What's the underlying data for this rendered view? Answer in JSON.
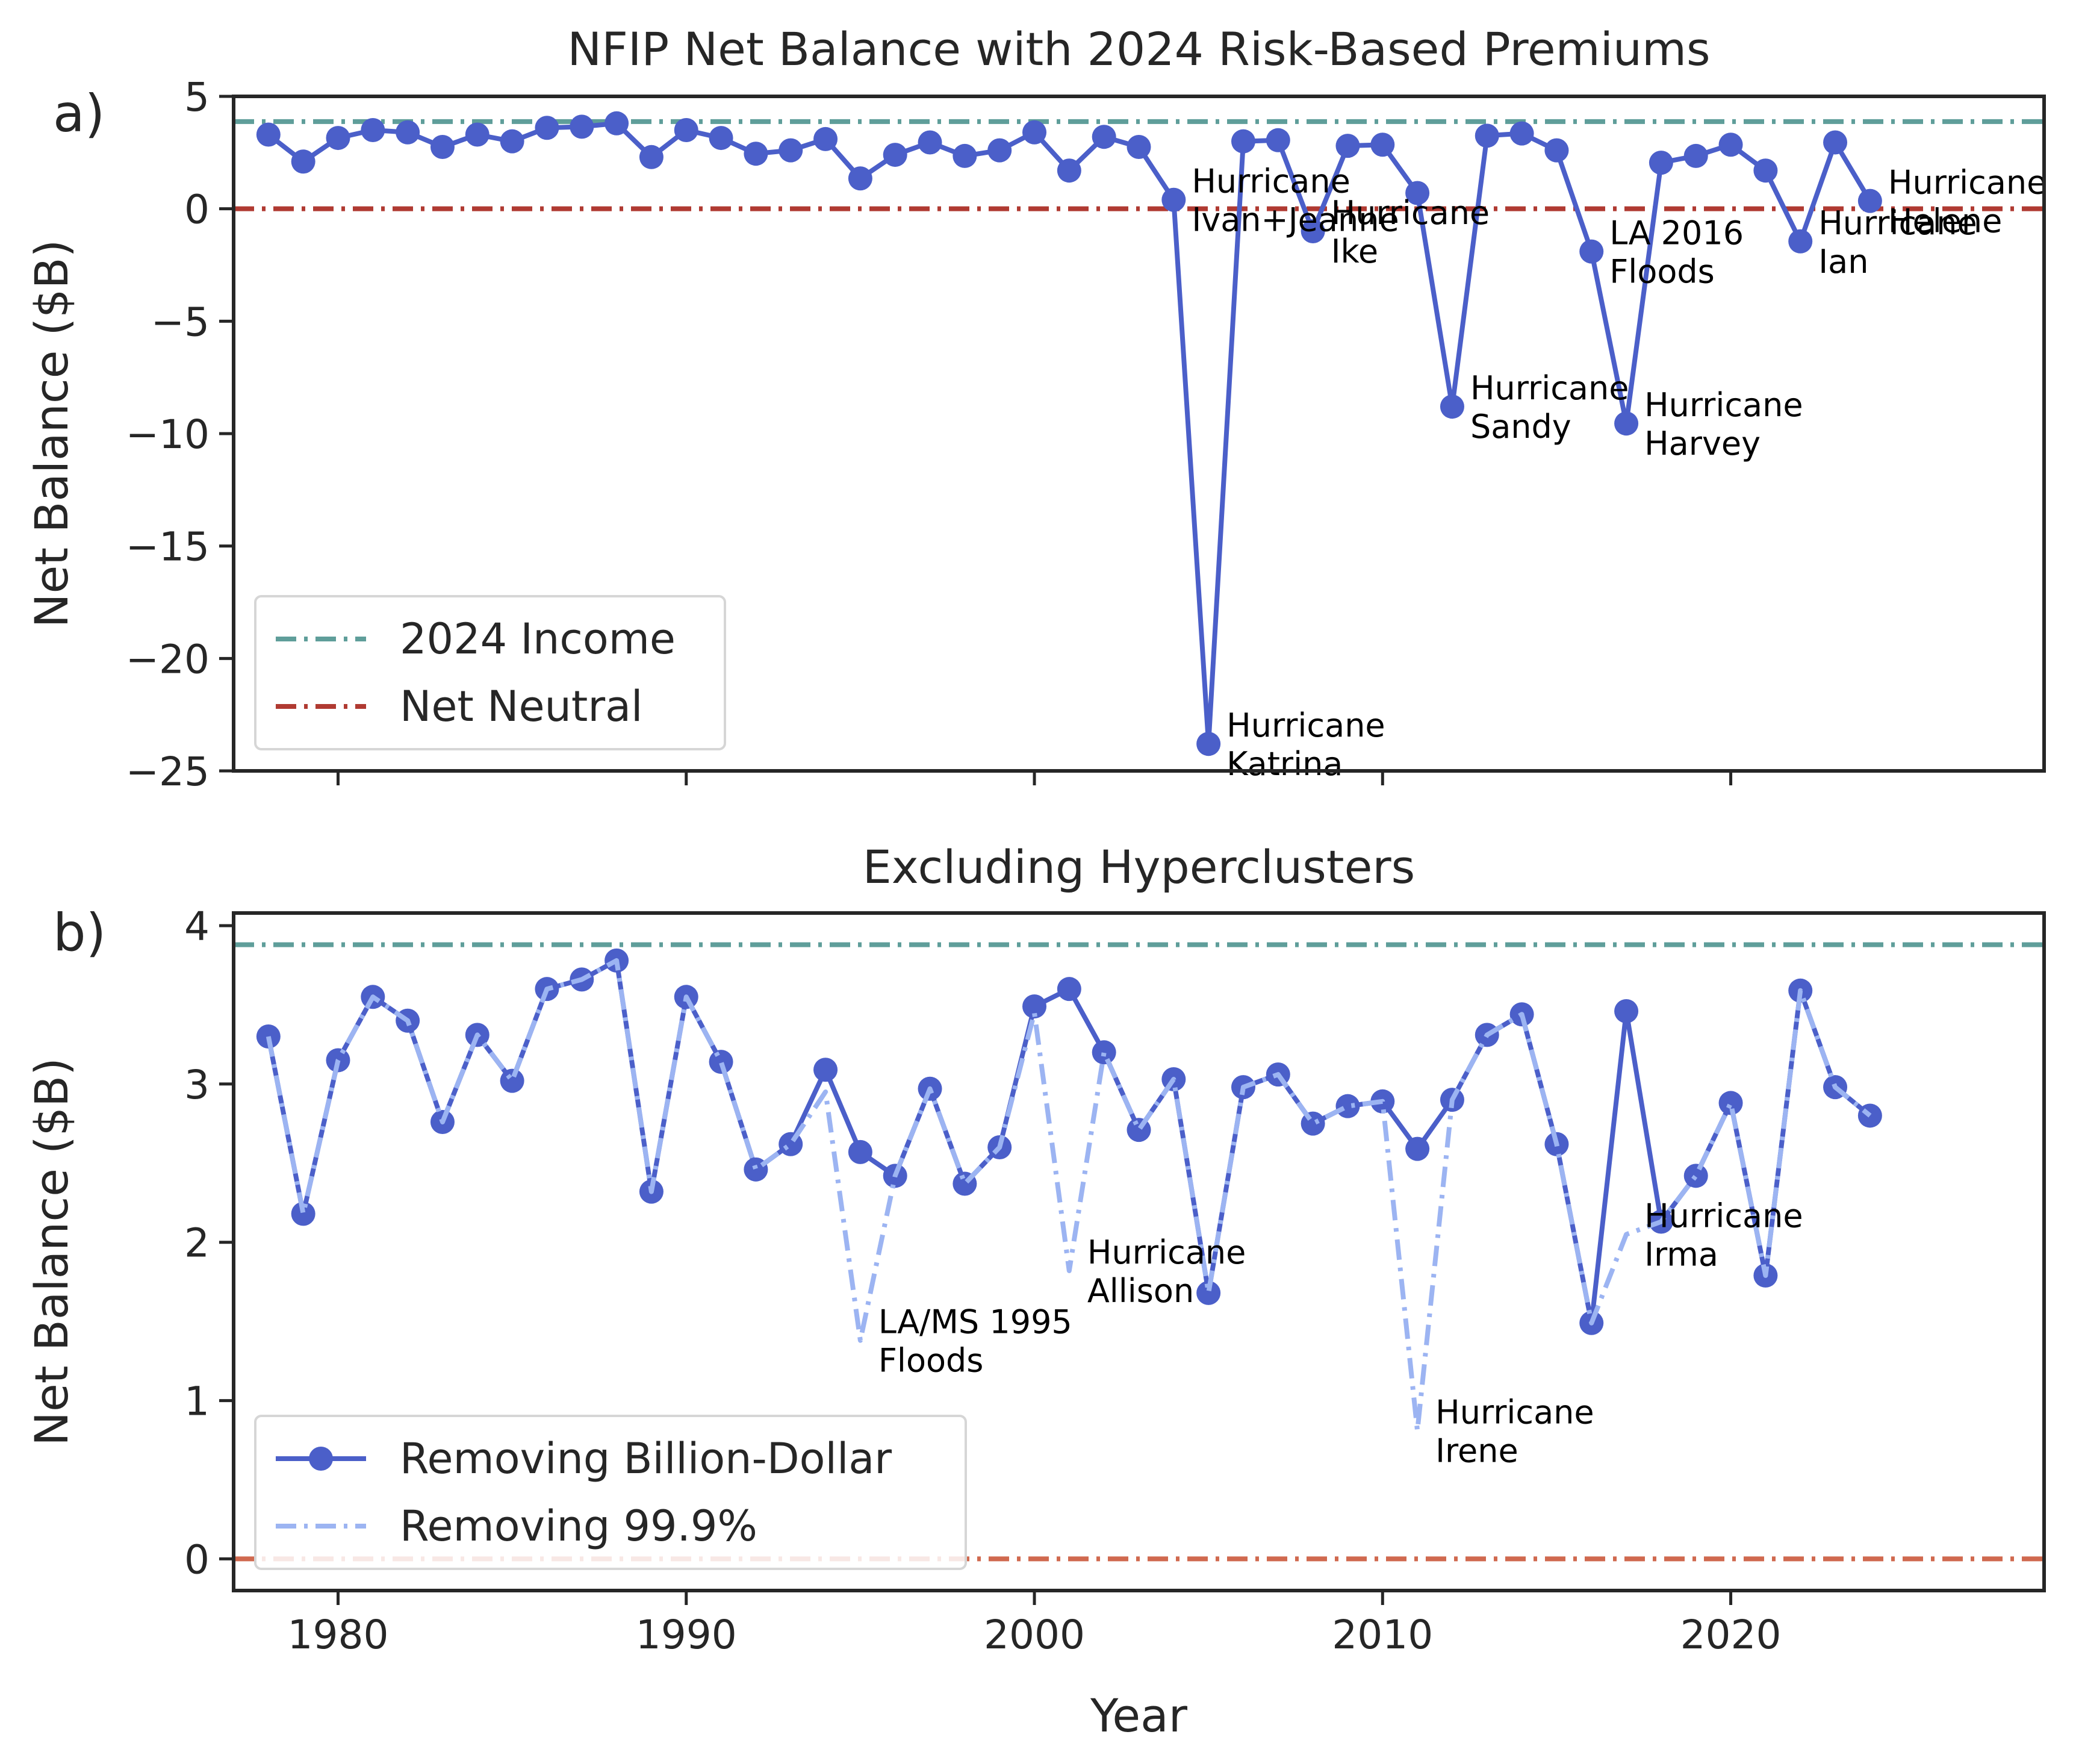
{
  "chart_data": [
    {
      "panel_label": "a)",
      "type": "line",
      "title": "NFIP Net Balance with 2024 Risk-Based Premiums",
      "xlabel": "",
      "ylabel": "Net Balance ($B)",
      "xlim": [
        1977,
        2029
      ],
      "ylim": [
        -25,
        5
      ],
      "xticks": [
        1980,
        1990,
        2000,
        2010,
        2020
      ],
      "yticks": [
        5,
        0,
        -5,
        -10,
        -15,
        -20,
        -25
      ],
      "ytick_labels": [
        "5",
        "0",
        "−5",
        "−10",
        "−15",
        "−20",
        "−25"
      ],
      "xtick_labels_visible": false,
      "grid": false,
      "legend_position": "lower-left",
      "reference_lines": [
        {
          "name": "2024 Income",
          "y": 3.88,
          "color": "#5f9e9a",
          "style": "dashdot"
        },
        {
          "name": "Net Neutral",
          "y": 0,
          "color": "#b03a32",
          "style": "dashdot"
        }
      ],
      "series": [
        {
          "color": "#4b5fc9",
          "x": [
            1978,
            1979,
            1980,
            1981,
            1982,
            1983,
            1984,
            1985,
            1986,
            1987,
            1988,
            1989,
            1990,
            1991,
            1992,
            1993,
            1994,
            1995,
            1996,
            1997,
            1998,
            1999,
            2000,
            2001,
            2002,
            2003,
            2004,
            2005,
            2006,
            2007,
            2008,
            2009,
            2010,
            2011,
            2012,
            2013,
            2014,
            2015,
            2016,
            2017,
            2018,
            2019,
            2020,
            2021,
            2022,
            2023,
            2024
          ],
          "values": [
            3.3,
            2.1,
            3.15,
            3.5,
            3.4,
            2.75,
            3.3,
            3.0,
            3.6,
            3.65,
            3.8,
            2.3,
            3.5,
            3.15,
            2.45,
            2.6,
            3.1,
            1.35,
            2.4,
            2.95,
            2.35,
            2.6,
            3.4,
            1.7,
            3.2,
            2.75,
            0.4,
            -23.8,
            3.0,
            3.05,
            -1.0,
            2.8,
            2.85,
            0.7,
            -8.8,
            3.25,
            3.35,
            2.6,
            -1.9,
            -9.55,
            2.05,
            2.35,
            2.85,
            1.7,
            -1.45,
            2.95,
            0.35
          ]
        }
      ],
      "annotations": [
        {
          "x": 2004,
          "y": 0.4,
          "lines": [
            "Hurricane",
            "Ivan+Jeanne"
          ]
        },
        {
          "x": 2005,
          "y": -23.8,
          "lines": [
            "Hurricane",
            "Katrina"
          ]
        },
        {
          "x": 2008,
          "y": -1.0,
          "lines": [
            "Hurricane",
            "Ike"
          ]
        },
        {
          "x": 2012,
          "y": -8.8,
          "lines": [
            "Hurricane",
            "Sandy"
          ]
        },
        {
          "x": 2016,
          "y": -1.9,
          "lines": [
            "LA 2016",
            "Floods"
          ]
        },
        {
          "x": 2017,
          "y": -9.55,
          "lines": [
            "Hurricane",
            "Harvey"
          ]
        },
        {
          "x": 2022,
          "y": -1.45,
          "lines": [
            "Hurricane",
            "Ian"
          ]
        },
        {
          "x": 2024,
          "y": 0.35,
          "lines": [
            "Hurricane",
            "Helene"
          ]
        }
      ]
    },
    {
      "panel_label": "b)",
      "type": "line",
      "title": "Excluding Hyperclusters",
      "xlabel": "Year",
      "ylabel": "Net Balance ($B)",
      "xlim": [
        1977,
        2029
      ],
      "ylim": [
        -0.2,
        4.08
      ],
      "xticks": [
        1980,
        1990,
        2000,
        2010,
        2020
      ],
      "yticks": [
        0,
        1,
        2,
        3,
        4
      ],
      "ytick_labels": [
        "0",
        "1",
        "2",
        "3",
        "4"
      ],
      "xtick_labels_visible": true,
      "grid": false,
      "legend_position": "lower-left",
      "reference_lines": [
        {
          "y": 3.88,
          "color": "#5f9e9a",
          "style": "dashdot"
        },
        {
          "y": 0,
          "color": "#d0694f",
          "style": "dashdot"
        }
      ],
      "series": [
        {
          "name": "Removing Billion-Dollar",
          "color": "#4b5fc9",
          "style": "solid",
          "markers": true,
          "x": [
            1978,
            1979,
            1980,
            1981,
            1982,
            1983,
            1984,
            1985,
            1986,
            1987,
            1988,
            1989,
            1990,
            1991,
            1992,
            1993,
            1994,
            1995,
            1996,
            1997,
            1998,
            1999,
            2000,
            2001,
            2002,
            2003,
            2004,
            2005,
            2006,
            2007,
            2008,
            2009,
            2010,
            2011,
            2012,
            2013,
            2014,
            2015,
            2016,
            2017,
            2018,
            2019,
            2020,
            2021,
            2022,
            2023,
            2024
          ],
          "values": [
            3.3,
            2.18,
            3.15,
            3.55,
            3.4,
            2.76,
            3.31,
            3.02,
            3.6,
            3.66,
            3.78,
            2.32,
            3.55,
            3.14,
            2.46,
            2.62,
            3.09,
            2.57,
            2.42,
            2.97,
            2.37,
            2.6,
            3.49,
            3.6,
            3.2,
            2.71,
            3.03,
            1.68,
            2.98,
            3.06,
            2.75,
            2.86,
            2.89,
            2.59,
            2.9,
            3.31,
            3.44,
            2.62,
            1.49,
            3.46,
            2.13,
            2.42,
            2.88,
            1.79,
            3.59,
            2.98,
            2.8
          ]
        },
        {
          "name": "Removing 99.9%",
          "color": "#9cb4f2",
          "style": "dashdot",
          "markers": false,
          "x": [
            1978,
            1979,
            1980,
            1981,
            1982,
            1983,
            1984,
            1985,
            1986,
            1987,
            1988,
            1989,
            1990,
            1991,
            1992,
            1993,
            1994,
            1995,
            1996,
            1997,
            1998,
            1999,
            2000,
            2001,
            2002,
            2003,
            2004,
            2005,
            2006,
            2007,
            2008,
            2009,
            2010,
            2011,
            2012,
            2013,
            2014,
            2015,
            2016,
            2017,
            2018,
            2019,
            2020,
            2021,
            2022,
            2023,
            2024
          ],
          "values": [
            3.3,
            2.18,
            3.15,
            3.55,
            3.4,
            2.76,
            3.31,
            3.02,
            3.6,
            3.66,
            3.78,
            2.32,
            3.55,
            3.14,
            2.46,
            2.62,
            2.95,
            1.38,
            2.42,
            2.97,
            2.37,
            2.6,
            3.45,
            1.82,
            3.2,
            2.71,
            3.03,
            1.68,
            2.98,
            3.06,
            2.75,
            2.86,
            2.89,
            0.81,
            2.9,
            3.31,
            3.44,
            2.62,
            1.49,
            2.05,
            2.13,
            2.42,
            2.88,
            1.79,
            3.59,
            2.98,
            2.8
          ]
        }
      ],
      "annotations": [
        {
          "x": 1995,
          "y": 1.38,
          "lines": [
            "LA/MS 1995",
            "Floods"
          ]
        },
        {
          "x": 2001,
          "y": 1.82,
          "lines": [
            "Hurricane",
            "Allison"
          ]
        },
        {
          "x": 2011,
          "y": 0.81,
          "lines": [
            "Hurricane",
            "Irene"
          ]
        },
        {
          "x": 2017,
          "y": 2.05,
          "lines": [
            "Hurricane",
            "Irma"
          ]
        }
      ]
    }
  ]
}
